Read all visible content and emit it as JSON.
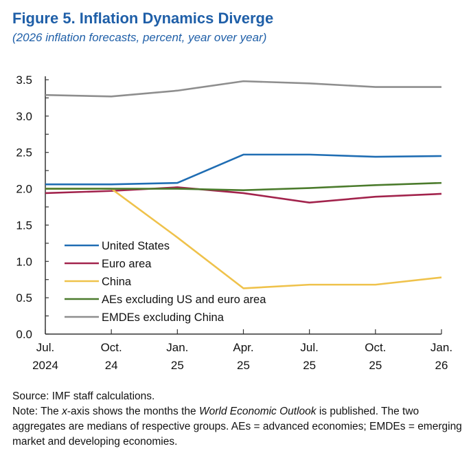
{
  "header": {
    "title": "Figure 5.  Inflation Dynamics Diverge",
    "subtitle": "(2026 inflation forecasts, percent, year over year)"
  },
  "chart_data": {
    "type": "line",
    "title": "Figure 5.  Inflation Dynamics Diverge",
    "subtitle": "(2026 inflation forecasts, percent, year over year)",
    "categories": [
      [
        "Jul.",
        "2024"
      ],
      [
        "Oct.",
        "24"
      ],
      [
        "Jan.",
        "25"
      ],
      [
        "Apr.",
        "25"
      ],
      [
        "Jul.",
        "25"
      ],
      [
        "Oct.",
        "25"
      ],
      [
        "Jan.",
        "26"
      ]
    ],
    "ylim": [
      0,
      3.5
    ],
    "yticks": [
      "0.0",
      "0.5",
      "1.0",
      "1.5",
      "2.0",
      "2.5",
      "3.0",
      "3.5"
    ],
    "grid": false,
    "legend_position": "bottom-left",
    "series": [
      {
        "name": "United States",
        "color": "#1f6db3",
        "values": [
          2.06,
          2.06,
          2.08,
          2.47,
          2.47,
          2.44,
          2.45
        ]
      },
      {
        "name": "Euro area",
        "color": "#a2234c",
        "values": [
          1.94,
          1.97,
          2.02,
          1.94,
          1.81,
          1.89,
          1.93
        ]
      },
      {
        "name": "China",
        "color": "#efc24b",
        "values": [
          2.0,
          2.0,
          1.33,
          0.63,
          0.68,
          0.68,
          0.78
        ]
      },
      {
        "name": "AEs excluding US and euro area",
        "color": "#4b7b2c",
        "values": [
          2.0,
          2.0,
          2.0,
          1.98,
          2.01,
          2.05,
          2.08
        ]
      },
      {
        "name": "EMDEs excluding China",
        "color": "#8e8e8e",
        "values": [
          3.29,
          3.27,
          3.35,
          3.48,
          3.45,
          3.4,
          3.4
        ]
      }
    ]
  },
  "notes": {
    "source": "Source: IMF staff calculations.",
    "note_prefix": "Note: The ",
    "note_x": "x",
    "note_mid": "-axis shows the months the ",
    "note_weo": "World Economic Outlook",
    "note_rest": " is published. The two aggregates are medians of respective groups. AEs = advanced economies; EMDEs = emerging market and developing economies."
  }
}
